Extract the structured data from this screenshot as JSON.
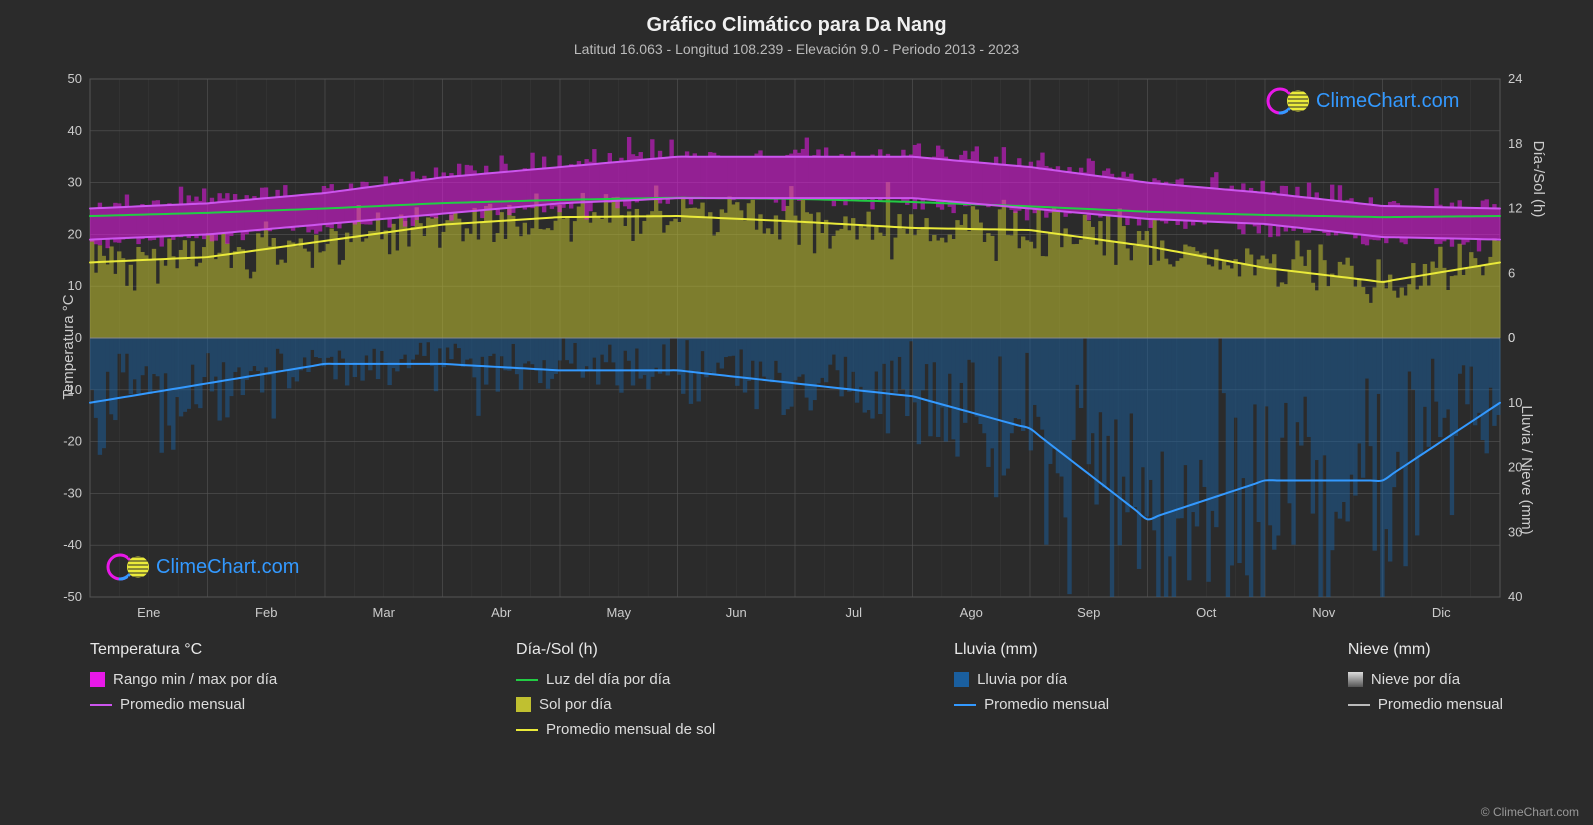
{
  "title": "Gráfico Climático para Da Nang",
  "subtitle": "Latitud 16.063 - Longitud 108.239 - Elevación 9.0 - Periodo 2013 - 2023",
  "logo_text": "ClimeChart.com",
  "copyright": "© ClimeChart.com",
  "chart": {
    "background_color": "#2b2b2b",
    "plot_border_color": "#555555",
    "grid_color": "#555555",
    "grid_width": 0.6,
    "tick_fontsize": 13,
    "tick_color": "#cccccc",
    "y_left": {
      "label": "Temperatura °C",
      "min": -50,
      "max": 50,
      "ticks": [
        -50,
        -40,
        -30,
        -20,
        -10,
        0,
        10,
        20,
        30,
        40,
        50
      ]
    },
    "y_right_top": {
      "label": "Día-/Sol (h)",
      "min": 0,
      "max": 24,
      "ticks": [
        0,
        6,
        12,
        18,
        24
      ],
      "ticks_at_temp": [
        0,
        12.5,
        25,
        37.5,
        50
      ]
    },
    "y_right_bottom": {
      "label": "Lluvia / Nieve (mm)",
      "min": 0,
      "max": 40,
      "ticks": [
        0,
        10,
        20,
        30,
        40
      ],
      "ticks_at_temp": [
        0,
        -12.5,
        -25,
        -37.5,
        -50
      ]
    },
    "x_months": [
      "Ene",
      "Feb",
      "Mar",
      "Abr",
      "May",
      "Jun",
      "Jul",
      "Ago",
      "Sep",
      "Oct",
      "Nov",
      "Dic"
    ],
    "series": {
      "temp_max_band": {
        "color": "#e818e8",
        "opacity": 0.55,
        "upper": [
          25,
          26,
          28,
          31,
          33,
          35,
          35,
          35,
          33,
          30,
          28,
          25.5
        ],
        "lower": [
          19,
          20,
          22,
          24,
          26,
          27,
          27,
          27,
          25,
          23,
          22,
          19.5
        ]
      },
      "temp_avg_line": {
        "color": "#cc55ee",
        "width": 2,
        "values": [
          22,
          23,
          25,
          27.5,
          29,
          30,
          30,
          29.5,
          28,
          26.5,
          25,
          22.5
        ]
      },
      "daylight_line": {
        "color": "#22cc44",
        "width": 2,
        "values_hours": [
          11.3,
          11.6,
          12.0,
          12.5,
          12.8,
          13.0,
          12.9,
          12.6,
          12.2,
          11.7,
          11.4,
          11.2
        ]
      },
      "sun_fill": {
        "color": "#c0c030",
        "opacity": 0.55,
        "values_hours": [
          7.0,
          7.5,
          9.0,
          10.5,
          11.2,
          11.3,
          10.8,
          10.2,
          10.0,
          8.5,
          6.5,
          5.2
        ]
      },
      "sun_avg_line": {
        "color": "#eaea3a",
        "width": 2,
        "values_hours": [
          7.0,
          7.5,
          9.0,
          10.5,
          11.2,
          11.3,
          10.8,
          10.2,
          10.0,
          8.5,
          6.5,
          5.2
        ]
      },
      "rain_fill": {
        "color": "#1a5f9f",
        "opacity": 0.5,
        "values_mm": [
          10,
          7,
          4,
          4,
          5,
          5,
          7,
          9,
          14,
          28,
          22,
          22
        ]
      },
      "rain_avg_line": {
        "color": "#3399ff",
        "width": 2,
        "values_mm": [
          10,
          7,
          4,
          4,
          5,
          5,
          7,
          9,
          14,
          28,
          22,
          22
        ]
      },
      "snow_avg_line": {
        "color": "#dddddd",
        "width": 2,
        "values_mm": [
          0,
          0,
          0,
          0,
          0,
          0,
          0,
          0,
          0,
          0,
          0,
          0
        ]
      }
    }
  },
  "legend": {
    "temp": {
      "title": "Temperatura °C",
      "range": {
        "label": "Rango min / max por día",
        "color": "#e818e8"
      },
      "avg": {
        "label": "Promedio mensual",
        "color": "#cc55ee"
      }
    },
    "daysun": {
      "title": "Día-/Sol (h)",
      "daylight": {
        "label": "Luz del día por día",
        "color": "#22cc44"
      },
      "sun": {
        "label": "Sol por día",
        "color": "#c0c030"
      },
      "sun_avg": {
        "label": "Promedio mensual de sol",
        "color": "#eaea3a"
      }
    },
    "rain": {
      "title": "Lluvia (mm)",
      "daily": {
        "label": "Lluvia por día",
        "color": "#1a5f9f"
      },
      "avg": {
        "label": "Promedio mensual",
        "color": "#3399ff"
      }
    },
    "snow": {
      "title": "Nieve (mm)",
      "daily": {
        "label": "Nieve por día",
        "color": "#dddddd"
      },
      "avg": {
        "label": "Promedio mensual",
        "color": "#bbbbbb"
      }
    }
  }
}
